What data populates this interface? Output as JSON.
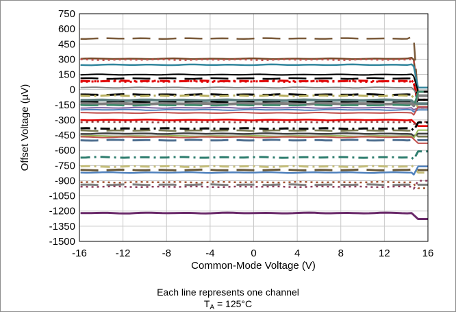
{
  "chart_data": {
    "type": "line",
    "xlabel": "Common-Mode Voltage (V)",
    "ylabel": "Offset Voltage (µV)",
    "xlim": [
      -16,
      16
    ],
    "ylim": [
      -1500,
      750
    ],
    "x_ticks": [
      -16,
      -12,
      -8,
      -4,
      0,
      4,
      8,
      12,
      16
    ],
    "y_ticks": [
      750,
      600,
      450,
      300,
      150,
      0,
      -150,
      -300,
      -450,
      -600,
      -750,
      -900,
      -1050,
      -1200,
      -1350,
      -1500
    ],
    "x_tick_labels": [
      "-16",
      "-12",
      "-8",
      "-4",
      "0",
      "4",
      "8",
      "12",
      "16"
    ],
    "y_tick_labels": [
      "750",
      "600",
      "450",
      "300",
      "150",
      "0",
      "-150",
      "-300",
      "-450",
      "-600",
      "-750",
      "-900",
      "-1050",
      "-1200",
      "-1350",
      "-1500"
    ],
    "grid": true,
    "series": [
      {
        "level": 505,
        "end": 520,
        "color": "#7a5a3a",
        "dash": "long",
        "width": 2.5
      },
      {
        "level": 305,
        "end": 315,
        "color": "#7a4a2a",
        "dash": "solid",
        "width": 2.5
      },
      {
        "level": 295,
        "end": 300,
        "color": "#c0504d",
        "dash": "dot",
        "width": 2.5
      },
      {
        "level": 245,
        "end": 250,
        "color": "#31859c",
        "dash": "solid",
        "width": 2.5
      },
      {
        "level": 148,
        "end": 152,
        "color": "#000000",
        "dash": "solid",
        "width": 2
      },
      {
        "level": 110,
        "end": 110,
        "color": "#000000",
        "dash": "long",
        "width": 2.5
      },
      {
        "level": 85,
        "end": 90,
        "color": "#e00000",
        "dash": "dashdot",
        "width": 3
      },
      {
        "level": 80,
        "end": 80,
        "color": "#e00000",
        "dash": "dot",
        "width": 3
      },
      {
        "level": 20,
        "end": 20,
        "color": "#7f7f7f",
        "dash": "solid",
        "width": 2
      },
      {
        "level": -50,
        "end": -50,
        "color": "#000000",
        "dash": "long",
        "width": 3
      },
      {
        "level": -60,
        "end": -60,
        "color": "#b8b060",
        "dash": "dashdot",
        "width": 3
      },
      {
        "level": -105,
        "end": -110,
        "color": "#5f7f7f",
        "dash": "solid",
        "width": 4
      },
      {
        "level": -125,
        "end": -130,
        "color": "#000000",
        "dash": "long",
        "width": 3
      },
      {
        "level": -140,
        "end": -140,
        "color": "#7f7f7f",
        "dash": "solid",
        "width": 4
      },
      {
        "level": -155,
        "end": -155,
        "color": "#3a8a6a",
        "dash": "long",
        "width": 2.5
      },
      {
        "level": -180,
        "end": -180,
        "color": "#8064a2",
        "dash": "solid",
        "width": 2
      },
      {
        "level": -200,
        "end": -200,
        "color": "#4f81bd",
        "dash": "solid",
        "width": 2
      },
      {
        "level": -230,
        "end": -230,
        "color": "#c0504d",
        "dash": "solid",
        "width": 2
      },
      {
        "level": -300,
        "end": -300,
        "color": "#e00000",
        "dash": "solid",
        "width": 2.5
      },
      {
        "level": -320,
        "end": -320,
        "color": "#8c3a3a",
        "dash": "dot",
        "width": 2.5
      },
      {
        "level": -385,
        "end": -385,
        "color": "#000000",
        "dash": "dashdot",
        "width": 3
      },
      {
        "level": -405,
        "end": -405,
        "color": "#7a7a50",
        "dash": "long",
        "width": 2.5
      },
      {
        "level": -435,
        "end": -440,
        "color": "#404040",
        "dash": "solid",
        "width": 2.5
      },
      {
        "level": -460,
        "end": -460,
        "color": "#9bbb59",
        "dash": "solid",
        "width": 2
      },
      {
        "level": -470,
        "end": -470,
        "color": "#c0504d",
        "dash": "solid",
        "width": 2
      },
      {
        "level": -500,
        "end": -500,
        "color": "#4f6f8f",
        "dash": "long",
        "width": 3
      },
      {
        "level": -670,
        "end": -670,
        "color": "#2e7d6e",
        "dash": "dashdot",
        "width": 3
      },
      {
        "level": -760,
        "end": -750,
        "color": "#c4bd7a",
        "dash": "dashdot",
        "width": 3
      },
      {
        "level": -795,
        "end": -790,
        "color": "#6a5a3a",
        "dash": "long",
        "width": 3
      },
      {
        "level": -820,
        "end": -820,
        "color": "#4f81bd",
        "dash": "solid",
        "width": 2.5
      },
      {
        "level": -915,
        "end": -915,
        "color": "#a0522d",
        "dash": "dot",
        "width": 2.5
      },
      {
        "level": -940,
        "end": -940,
        "color": "#7f7f7f",
        "dash": "long",
        "width": 3
      },
      {
        "level": -960,
        "end": -960,
        "color": "#8c3a5a",
        "dash": "dot",
        "width": 2.5
      },
      {
        "level": -1220,
        "end": -1220,
        "color": "#6a2a6a",
        "dash": "solid",
        "width": 3
      }
    ]
  },
  "notes": {
    "line1": "Each line represents one channel",
    "line2_main": "T",
    "line2_sub": "A",
    "line2_rest": " = 125°C"
  }
}
